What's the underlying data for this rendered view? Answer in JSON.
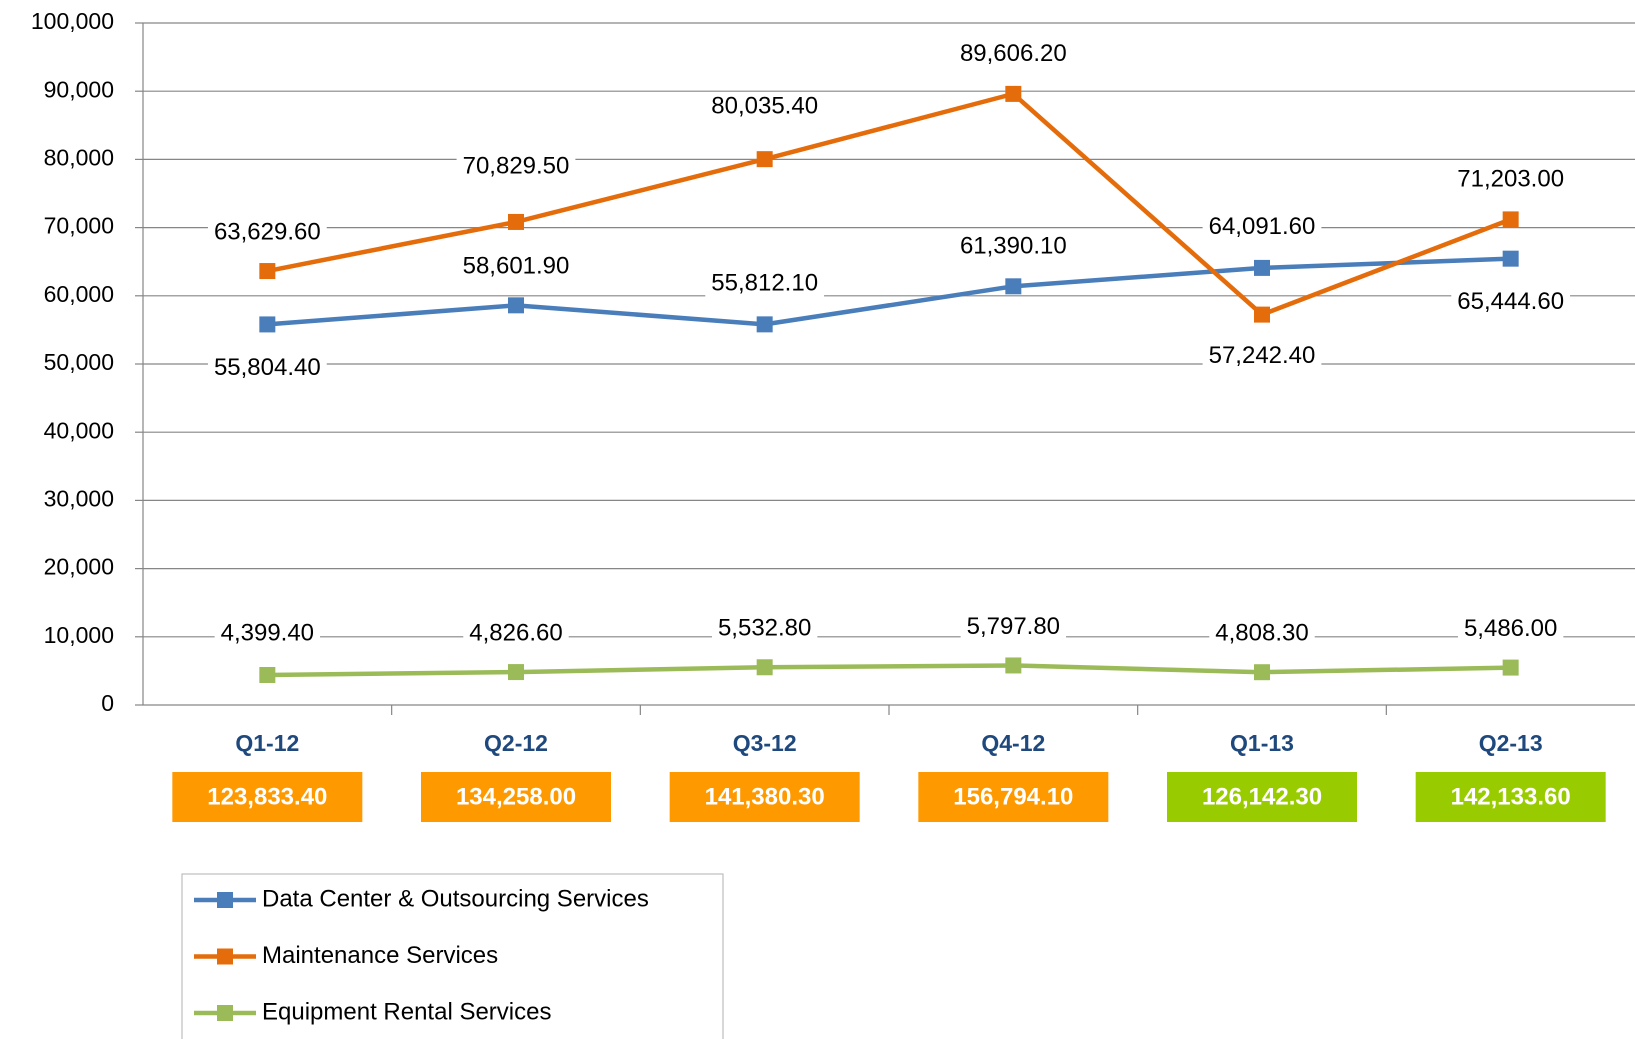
{
  "chart_data": {
    "type": "line",
    "categories": [
      "Q1-12",
      "Q2-12",
      "Q3-12",
      "Q4-12",
      "Q1-13",
      "Q2-13"
    ],
    "ylim": [
      0,
      100000
    ],
    "yticks": [
      0,
      {
        "value": 10000,
        "label": "10,000"
      },
      {
        "value": 20000,
        "label": "20,000"
      },
      {
        "value": 30000,
        "label": "30,000"
      },
      {
        "value": 40000,
        "label": "40,000"
      },
      {
        "value": 50000,
        "label": "50,000"
      },
      {
        "value": 60000,
        "label": "60,000"
      },
      {
        "value": 70000,
        "label": "70,000"
      },
      {
        "value": 80000,
        "label": "80,000"
      },
      {
        "value": 90000,
        "label": "90,000"
      },
      {
        "value": 100000,
        "label": "100,000"
      }
    ],
    "grid": true,
    "series": [
      {
        "name": "Data Center & Outsourcing Services",
        "color": "#4a7ebb",
        "values": [
          55804.4,
          58601.9,
          55812.1,
          61390.1,
          64091.6,
          65444.6
        ],
        "value_labels": [
          "55,804.40",
          "58,601.90",
          "55,812.10",
          "61,390.10",
          "64,091.60",
          "65,444.60"
        ]
      },
      {
        "name": "Maintenance Services",
        "color": "#e46c0a",
        "values": [
          63629.6,
          70829.5,
          80035.4,
          89606.2,
          57242.4,
          71203.0
        ],
        "value_labels": [
          "63,629.60",
          "70,829.50",
          "80,035.40",
          "89,606.20",
          "57,242.40",
          "71,203.00"
        ]
      },
      {
        "name": "Equipment Rental Services",
        "color": "#9bbb59",
        "values": [
          4399.4,
          4826.6,
          5532.8,
          5797.8,
          4808.3,
          5486.0
        ],
        "value_labels": [
          "4,399.40",
          "4,826.60",
          "5,532.80",
          "5,797.80",
          "4,808.30",
          "5,486.00"
        ]
      }
    ],
    "totals": {
      "values": [
        123833.4,
        134258.0,
        141380.3,
        156794.1,
        126142.3,
        142133.6
      ],
      "value_labels": [
        "123,833.40",
        "134,258.00",
        "141,380.30",
        "156,794.10",
        "126,142.30",
        "142,133.60"
      ],
      "colors": [
        "#ff9900",
        "#ff9900",
        "#ff9900",
        "#ff9900",
        "#99cc00",
        "#99cc00"
      ]
    }
  }
}
